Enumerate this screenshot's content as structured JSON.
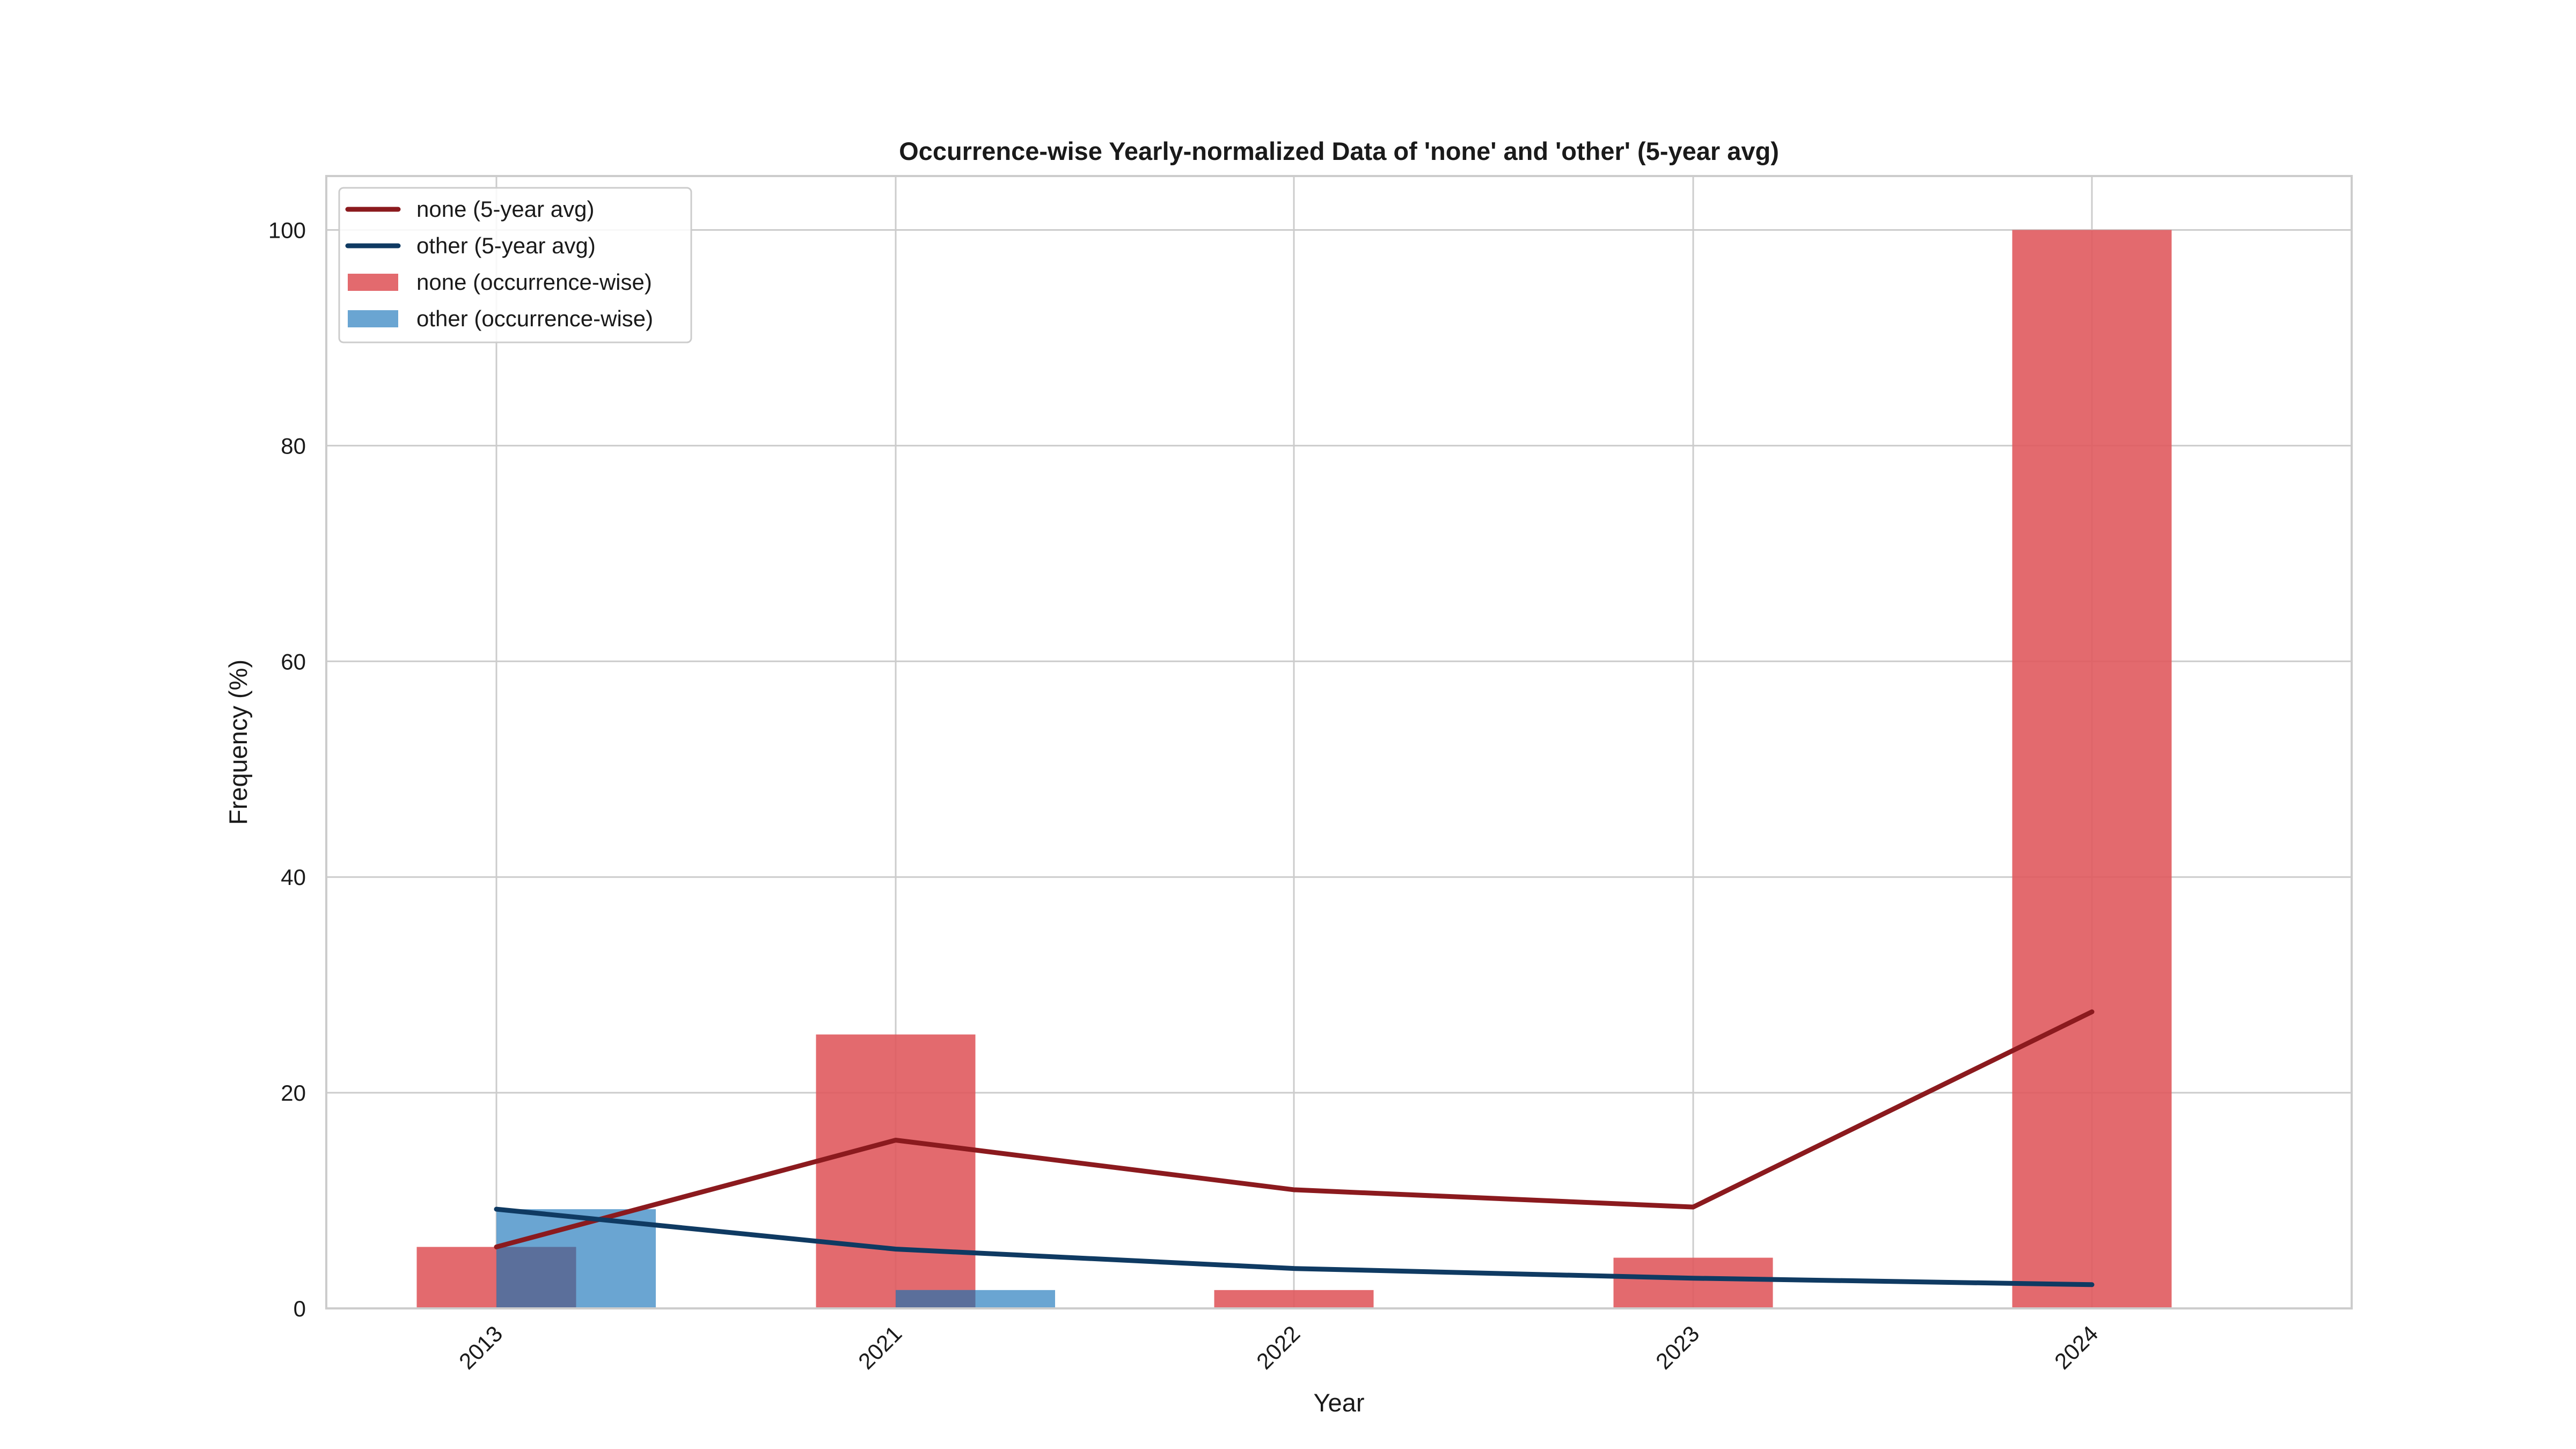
{
  "chart_data": {
    "type": "bar",
    "title": "Occurrence-wise Yearly-normalized Data of 'none' and 'other' (5-year avg)",
    "xlabel": "Year",
    "ylabel": "Frequency (%)",
    "categories": [
      "2013",
      "2021",
      "2022",
      "2023",
      "2024"
    ],
    "ylim": [
      0,
      105
    ],
    "yticks": [
      0,
      20,
      40,
      60,
      80,
      100
    ],
    "grid": true,
    "legend_position": "top-left",
    "bar_series": [
      {
        "name": "none (occurrence-wise)",
        "color": "#e05a5e",
        "values": [
          5.7,
          25.4,
          1.7,
          4.7,
          100
        ]
      },
      {
        "name": "other (occurrence-wise)",
        "color": "#5a9bcd",
        "values": [
          9.2,
          1.7,
          0,
          0,
          0
        ]
      }
    ],
    "line_series": [
      {
        "name": "none (5-year avg)",
        "color": "#8b1a1e",
        "values": [
          5.7,
          15.6,
          11.0,
          9.4,
          27.5
        ]
      },
      {
        "name": "other (5-year avg)",
        "color": "#0f3a62",
        "values": [
          9.2,
          5.5,
          3.7,
          2.8,
          2.2
        ]
      }
    ],
    "legend": [
      "none (5-year avg)",
      "other (5-year avg)",
      "none (occurrence-wise)",
      "other (occurrence-wise)"
    ]
  }
}
